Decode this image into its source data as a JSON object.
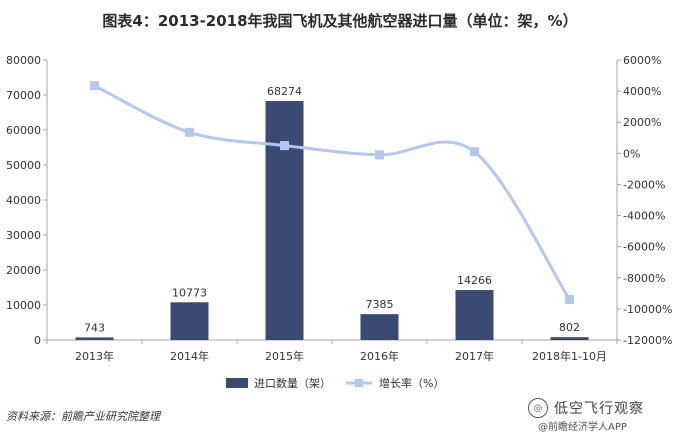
{
  "page": {
    "title": "图表4：2013-2018年我国飞机及其他航空器进口量（单位：架，%）",
    "source": "资料来源：前瞻产业研究院整理",
    "watermark_name": "低空飞行观察",
    "watermark_sub": "@前瞻经济学人APP",
    "watermark_logo_text": "◎"
  },
  "chart_data": {
    "type": "bar",
    "title": "图表4：2013-2018年我国飞机及其他航空器进口量（单位：架，%）",
    "categories": [
      "2013年",
      "2014年",
      "2015年",
      "2016年",
      "2017年",
      "2018年1-10月"
    ],
    "series": [
      {
        "name": "进口数量（架）",
        "type": "bar",
        "axis": "left",
        "values": [
          743,
          10773,
          68274,
          7385,
          14266,
          802
        ],
        "data_labels": [
          "743",
          "10773",
          "68274",
          "7385",
          "14266",
          "802"
        ],
        "color": "#3b4a73"
      },
      {
        "name": "增长率（%）",
        "type": "line",
        "axis": "right",
        "values": [
          4350,
          1350,
          500,
          -100,
          100,
          -9400
        ],
        "color": "#b4c7f0"
      }
    ],
    "y_left": {
      "min": 0,
      "max": 80000,
      "ticks": [
        "0",
        "10000",
        "20000",
        "30000",
        "40000",
        "50000",
        "60000",
        "70000",
        "80000"
      ]
    },
    "y_right": {
      "min": -12000,
      "max": 6000,
      "ticks": [
        "-12000%",
        "-10000%",
        "-8000%",
        "-6000%",
        "-4000%",
        "-2000%",
        "0%",
        "2000%",
        "4000%",
        "6000%"
      ]
    },
    "legend_position": "bottom",
    "grid": false
  }
}
